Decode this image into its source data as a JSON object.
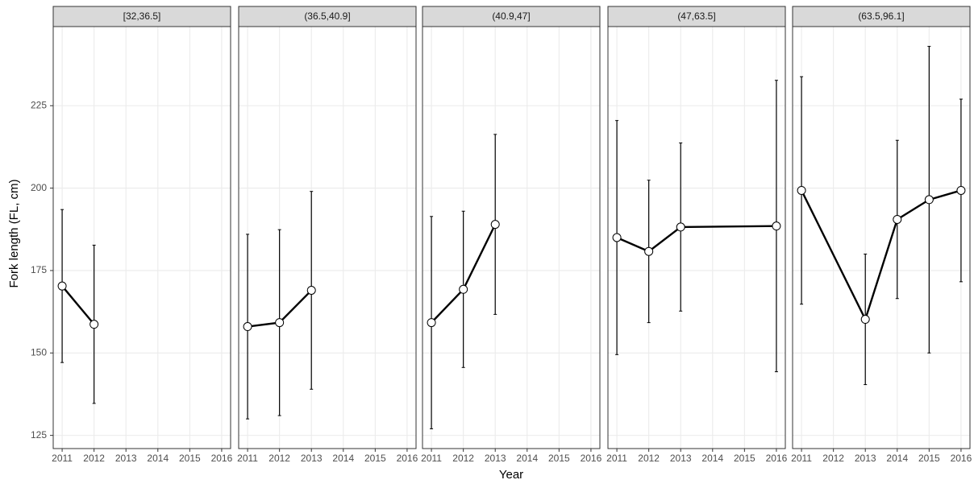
{
  "chart_data": {
    "type": "line",
    "xlabel": "Year",
    "ylabel": "Fork length (FL, cm)",
    "xlim": [
      2010.72,
      2016.28
    ],
    "xticks": [
      2011,
      2012,
      2013,
      2014,
      2015,
      2016
    ],
    "ylim": [
      121,
      249
    ],
    "yticks": [
      125,
      150,
      175,
      200,
      225
    ],
    "grid": true,
    "color": "#000000",
    "facets": [
      {
        "title": "[32,36.5]",
        "x": [
          2011,
          2012
        ],
        "values": [
          170.3,
          158.7
        ],
        "errors": [
          23.2,
          24
        ]
      },
      {
        "title": "(36.5,40.9]",
        "x": [
          2011,
          2012,
          2013
        ],
        "values": [
          158,
          159.2,
          169
        ],
        "errors": [
          28,
          28.2,
          30
        ]
      },
      {
        "title": "(40.9,47]",
        "x": [
          2011,
          2012,
          2013
        ],
        "values": [
          159.2,
          169.3,
          189
        ],
        "errors": [
          32.2,
          23.7,
          27.3
        ]
      },
      {
        "title": "(47,63.5]",
        "x": [
          2011,
          2012,
          2013,
          2016
        ],
        "values": [
          185,
          180.8,
          188.2,
          188.5
        ],
        "errors": [
          35.5,
          21.6,
          25.5,
          44.2
        ]
      },
      {
        "title": "(63.5,96.1]",
        "x": [
          2011,
          2013,
          2014,
          2015,
          2016
        ],
        "values": [
          199.3,
          160.2,
          190.5,
          196.5,
          199.3
        ],
        "errors": [
          34.5,
          19.8,
          24,
          46.5,
          27.7
        ]
      }
    ]
  }
}
